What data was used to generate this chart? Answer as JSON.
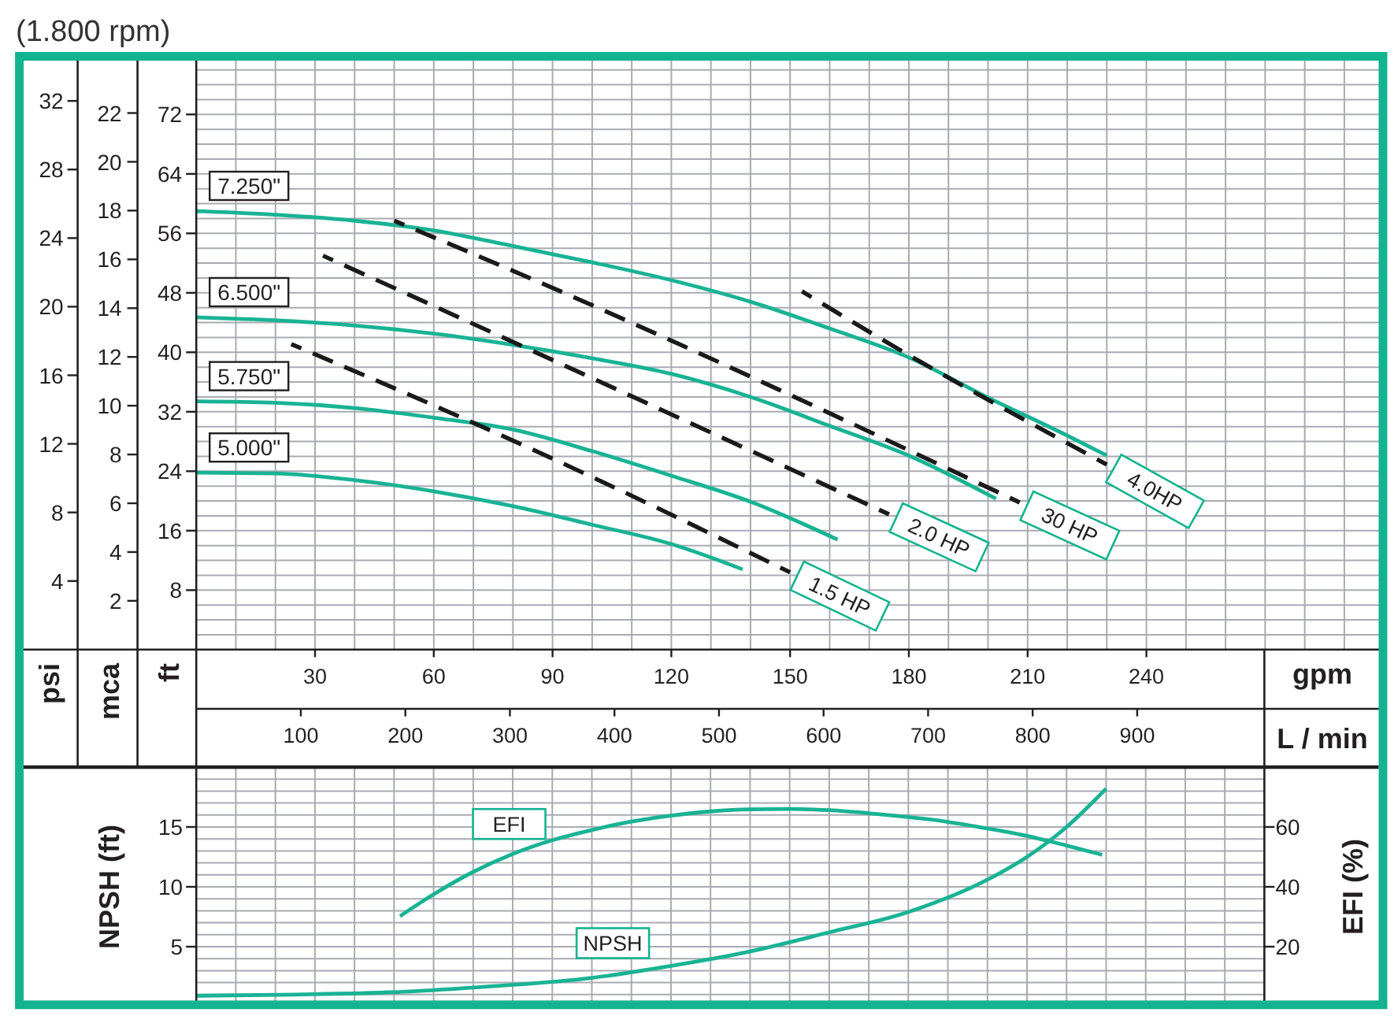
{
  "chart_data": [
    {
      "type": "line",
      "title": "(1.800 rpm)",
      "xlabel": "gpm",
      "x2label": "L / min",
      "ylabel": "ft",
      "y2label": "mca",
      "y3label": "psi",
      "xlim": [
        0,
        300
      ],
      "xticks": [
        {
          "value": 10,
          "label": null
        },
        {
          "value": 20,
          "label": null
        },
        30,
        {
          "value": 40,
          "label": null
        },
        {
          "value": 50,
          "label": null
        },
        60,
        {
          "value": 70,
          "label": null
        },
        {
          "value": 80,
          "label": null
        },
        90,
        {
          "value": 100,
          "label": null
        },
        {
          "value": 110,
          "label": null
        },
        120,
        {
          "value": 130,
          "label": null
        },
        {
          "value": 140,
          "label": null
        },
        150,
        {
          "value": 160,
          "label": null
        },
        {
          "value": 170,
          "label": null
        },
        180,
        {
          "value": 190,
          "label": null
        },
        {
          "value": 200,
          "label": null
        },
        210,
        {
          "value": 220,
          "label": null
        },
        {
          "value": 230,
          "label": null
        },
        240,
        {
          "value": 250,
          "label": null
        },
        {
          "value": 260,
          "label": null
        },
        {
          "value": 270,
          "label": null
        },
        {
          "value": 280,
          "label": null
        },
        {
          "value": 290,
          "label": null
        }
      ],
      "x2lim": [
        0,
        1136
      ],
      "x2ticks": [
        100,
        200,
        300,
        400,
        500,
        600,
        700,
        800,
        900
      ],
      "ylim": [
        0,
        80
      ],
      "yticks": [
        {
          "value": 2,
          "label": null
        },
        {
          "value": 4,
          "label": null
        },
        {
          "value": 6,
          "label": null
        },
        8,
        {
          "value": 10,
          "label": null
        },
        {
          "value": 12,
          "label": null
        },
        {
          "value": 14,
          "label": null
        },
        16,
        {
          "value": 18,
          "label": null
        },
        {
          "value": 20,
          "label": null
        },
        {
          "value": 22,
          "label": null
        },
        24,
        {
          "value": 26,
          "label": null
        },
        {
          "value": 28,
          "label": null
        },
        {
          "value": 30,
          "label": null
        },
        32,
        {
          "value": 34,
          "label": null
        },
        {
          "value": 36,
          "label": null
        },
        {
          "value": 38,
          "label": null
        },
        40,
        {
          "value": 42,
          "label": null
        },
        {
          "value": 44,
          "label": null
        },
        {
          "value": 46,
          "label": null
        },
        48,
        {
          "value": 50,
          "label": null
        },
        {
          "value": 52,
          "label": null
        },
        {
          "value": 54,
          "label": null
        },
        56,
        {
          "value": 58,
          "label": null
        },
        {
          "value": 60,
          "label": null
        },
        {
          "value": 62,
          "label": null
        },
        64,
        {
          "value": 66,
          "label": null
        },
        {
          "value": 68,
          "label": null
        },
        {
          "value": 70,
          "label": null
        },
        72,
        {
          "value": 74,
          "label": null
        },
        {
          "value": 76,
          "label": null
        },
        {
          "value": 78,
          "label": null
        }
      ],
      "y2lim": [
        0,
        24.38
      ],
      "y2ticks": [
        2,
        4,
        6,
        8,
        10,
        12,
        14,
        16,
        18,
        20,
        22
      ],
      "y3lim": [
        0,
        34.68
      ],
      "y3ticks": [
        4,
        8,
        12,
        16,
        20,
        24,
        28,
        32
      ],
      "grid": true,
      "series": [
        {
          "name": "7.250\"",
          "color": "#19b394",
          "x": [
            0,
            20,
            40,
            60,
            80,
            100,
            120,
            140,
            160,
            180,
            200,
            220,
            230
          ],
          "values": [
            59.0,
            58.5,
            57.7,
            56.4,
            54.3,
            52.1,
            49.7,
            46.8,
            43.2,
            39.3,
            33.9,
            28.8,
            26.1
          ]
        },
        {
          "name": "6.500\"",
          "color": "#19b394",
          "x": [
            0,
            20,
            40,
            60,
            80,
            100,
            120,
            140,
            160,
            180,
            202
          ],
          "values": [
            44.7,
            44.3,
            43.6,
            42.5,
            41.0,
            39.2,
            37.1,
            34.0,
            30.1,
            26.1,
            20.3
          ]
        },
        {
          "name": "5.750\"",
          "color": "#19b394",
          "x": [
            0,
            20,
            40,
            60,
            80,
            100,
            120,
            140,
            162
          ],
          "values": [
            33.4,
            33.2,
            32.5,
            31.2,
            29.6,
            26.7,
            23.4,
            19.9,
            14.8
          ]
        },
        {
          "name": "5.000\"",
          "color": "#19b394",
          "x": [
            0,
            20,
            40,
            60,
            80,
            100,
            120,
            138
          ],
          "values": [
            23.8,
            23.7,
            22.8,
            21.3,
            19.3,
            16.8,
            14.2,
            10.8
          ]
        },
        {
          "name": "1.5 HP",
          "color": "#1a1a1a",
          "line_style": "dashed",
          "x": [
            24,
            83,
            150
          ],
          "values": [
            41.1,
            27.4,
            10.4
          ]
        },
        {
          "name": "2.0 HP",
          "color": "#1a1a1a",
          "line_style": "dashed",
          "x": [
            32,
            82,
            175
          ],
          "values": [
            53.0,
            40.9,
            18.2
          ]
        },
        {
          "name": "30 HP",
          "color": "#1a1a1a",
          "line_style": "dashed",
          "x": [
            50,
            82,
            208
          ],
          "values": [
            57.7,
            50.5,
            19.8
          ]
        },
        {
          "name": "4.0HP",
          "color": "#1a1a1a",
          "line_style": "dashed",
          "x": [
            153,
            173,
            230
          ],
          "values": [
            48.2,
            41.8,
            24.9
          ]
        }
      ]
    },
    {
      "type": "line",
      "ylabel": "NPSH (ft)",
      "y2label": "EFI (%)",
      "xlim": [
        0,
        270
      ],
      "xticks": [
        10,
        20,
        30,
        40,
        50,
        60,
        70,
        80,
        90,
        100,
        110,
        120,
        130,
        140,
        150,
        160,
        170,
        180,
        190,
        200,
        210,
        220,
        230,
        240,
        250,
        260
      ],
      "ylim": [
        0,
        20
      ],
      "yticks": [
        {
          "value": 1,
          "label": null
        },
        {
          "value": 2,
          "label": null
        },
        {
          "value": 3,
          "label": null
        },
        {
          "value": 4,
          "label": null
        },
        5,
        {
          "value": 6,
          "label": null
        },
        {
          "value": 7,
          "label": null
        },
        {
          "value": 8,
          "label": null
        },
        {
          "value": 9,
          "label": null
        },
        10,
        {
          "value": 11,
          "label": null
        },
        {
          "value": 12,
          "label": null
        },
        {
          "value": 13,
          "label": null
        },
        {
          "value": 14,
          "label": null
        },
        15,
        {
          "value": 16,
          "label": null
        },
        {
          "value": 17,
          "label": null
        },
        {
          "value": 18,
          "label": null
        },
        {
          "value": 19,
          "label": null
        }
      ],
      "y2lim": [
        0,
        80
      ],
      "y2ticks": [
        20,
        40,
        60
      ],
      "grid": true,
      "tick_labels": "y",
      "series": [
        {
          "name": "EFI",
          "color": "#19b394",
          "axis": "y2",
          "x": [
            51.5,
            60,
            70,
            80,
            90,
            100,
            110,
            120,
            130,
            140,
            150,
            160,
            170,
            180,
            190,
            200,
            210,
            220,
            229
          ],
          "values": [
            30.2,
            37.5,
            45.0,
            51.0,
            55.6,
            59.0,
            61.8,
            63.8,
            65.2,
            65.9,
            66.0,
            65.6,
            64.6,
            63.3,
            61.7,
            59.5,
            57.0,
            53.8,
            50.7
          ]
        },
        {
          "name": "NPSH",
          "color": "#19b394",
          "x": [
            0,
            25,
            50,
            75,
            100,
            120,
            140,
            160,
            180,
            200,
            210,
            220,
            230
          ],
          "values": [
            0.9,
            1.0,
            1.2,
            1.7,
            2.4,
            3.4,
            4.6,
            6.2,
            7.9,
            10.6,
            12.5,
            15.0,
            18.2
          ]
        }
      ]
    }
  ]
}
